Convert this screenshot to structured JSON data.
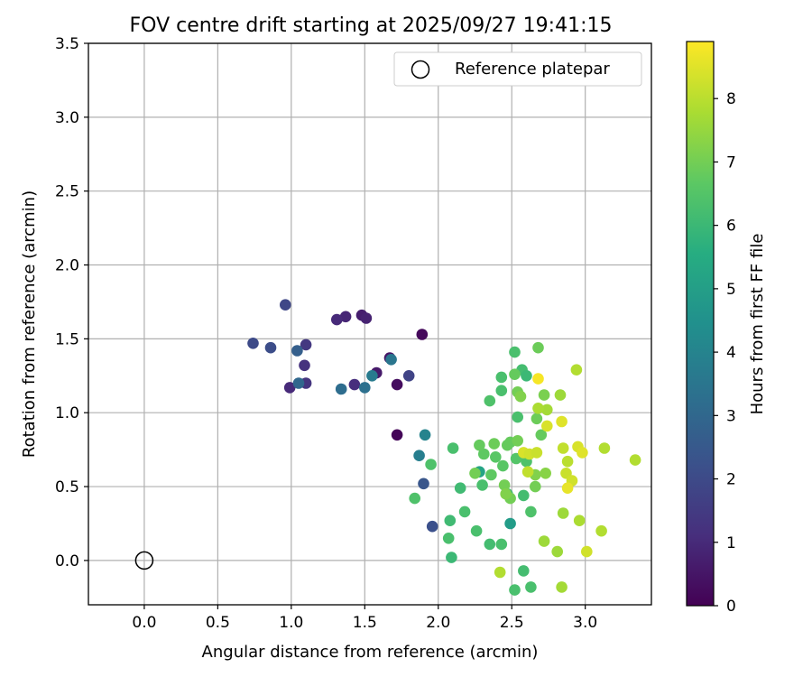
{
  "chart_data": {
    "type": "scatter",
    "title": "FOV centre drift starting at 2025/09/27 19:41:15",
    "xlabel": "Angular distance from reference (arcmin)",
    "ylabel": "Rotation from reference (arcmin)",
    "xlim": [
      -0.38,
      3.45
    ],
    "ylim": [
      -0.3,
      3.5
    ],
    "x_ticks": [
      "0.0",
      "0.5",
      "1.0",
      "1.5",
      "2.0",
      "2.5",
      "3.0"
    ],
    "y_ticks": [
      "0.0",
      "0.5",
      "1.0",
      "1.5",
      "2.0",
      "2.5",
      "3.0",
      "3.5"
    ],
    "grid": true,
    "legend": {
      "position": "top-right",
      "label": "Reference platepar"
    },
    "reference_point": {
      "x": 0.0,
      "y": 0.0
    },
    "colorbar": {
      "label": "Hours from first FF file",
      "range": [
        0,
        8.9
      ],
      "ticks": [
        "0",
        "1",
        "2",
        "3",
        "4",
        "5",
        "6",
        "7",
        "8"
      ],
      "colormap": "viridis"
    },
    "points": [
      [
        1.72,
        0.85,
        0.1
      ],
      [
        1.89,
        1.53,
        0.2
      ],
      [
        1.72,
        1.19,
        0.3
      ],
      [
        1.67,
        1.37,
        0.5
      ],
      [
        1.58,
        1.27,
        0.6
      ],
      [
        1.48,
        1.66,
        0.7
      ],
      [
        1.51,
        1.64,
        0.8
      ],
      [
        1.37,
        1.65,
        0.9
      ],
      [
        1.31,
        1.63,
        1.0
      ],
      [
        1.43,
        1.19,
        1.1
      ],
      [
        0.99,
        1.17,
        1.0
      ],
      [
        1.09,
        1.32,
        1.2
      ],
      [
        1.1,
        1.2,
        1.3
      ],
      [
        1.1,
        1.46,
        1.4
      ],
      [
        1.8,
        1.25,
        1.8
      ],
      [
        0.96,
        1.73,
        1.9
      ],
      [
        0.74,
        1.47,
        2.0
      ],
      [
        0.86,
        1.44,
        2.1
      ],
      [
        1.96,
        0.23,
        2.2
      ],
      [
        1.9,
        0.52,
        2.4
      ],
      [
        1.04,
        1.42,
        2.7
      ],
      [
        1.05,
        1.2,
        3.0
      ],
      [
        1.34,
        1.16,
        3.2
      ],
      [
        1.5,
        1.17,
        3.3
      ],
      [
        1.68,
        1.36,
        3.5
      ],
      [
        1.55,
        1.25,
        3.7
      ],
      [
        1.87,
        0.71,
        3.8
      ],
      [
        1.91,
        0.85,
        4.0
      ],
      [
        2.49,
        0.25,
        4.9
      ],
      [
        2.28,
        0.6,
        5.2
      ],
      [
        2.57,
        1.29,
        6.2
      ],
      [
        2.6,
        1.25,
        6.0
      ],
      [
        2.08,
        0.27,
        6.1
      ],
      [
        2.09,
        0.02,
        6.0
      ],
      [
        2.07,
        0.15,
        6.3
      ],
      [
        2.15,
        0.49,
        6.1
      ],
      [
        1.84,
        0.42,
        6.4
      ],
      [
        1.95,
        0.65,
        6.4
      ],
      [
        2.1,
        0.76,
        6.3
      ],
      [
        2.18,
        0.33,
        6.3
      ],
      [
        2.26,
        0.2,
        6.3
      ],
      [
        2.35,
        0.11,
        6.2
      ],
      [
        2.43,
        0.11,
        6.3
      ],
      [
        2.47,
        0.45,
        6.1
      ],
      [
        2.3,
        0.51,
        6.3
      ],
      [
        2.35,
        1.08,
        6.4
      ],
      [
        2.43,
        1.15,
        6.3
      ],
      [
        2.43,
        1.24,
        6.3
      ],
      [
        2.52,
        1.41,
        6.3
      ],
      [
        2.54,
        0.97,
        6.3
      ],
      [
        2.58,
        0.44,
        6.2
      ],
      [
        2.58,
        -0.07,
        6.2
      ],
      [
        2.52,
        -0.2,
        6.3
      ],
      [
        2.63,
        -0.18,
        6.3
      ],
      [
        2.63,
        0.33,
        6.4
      ],
      [
        2.6,
        0.67,
        6.4
      ],
      [
        2.53,
        0.69,
        6.5
      ],
      [
        2.44,
        0.64,
        6.6
      ],
      [
        2.39,
        0.7,
        6.6
      ],
      [
        2.36,
        0.58,
        6.7
      ],
      [
        2.31,
        0.72,
        6.7
      ],
      [
        2.28,
        0.78,
        6.8
      ],
      [
        2.38,
        0.79,
        6.9
      ],
      [
        2.49,
        0.8,
        6.8
      ],
      [
        2.54,
        0.81,
        7.0
      ],
      [
        2.47,
        0.78,
        6.8
      ],
      [
        2.25,
        0.59,
        7.0
      ],
      [
        2.45,
        0.51,
        7.0
      ],
      [
        2.49,
        0.42,
        7.0
      ],
      [
        2.52,
        1.26,
        6.8
      ],
      [
        2.54,
        1.14,
        7.0
      ],
      [
        2.56,
        1.11,
        7.2
      ],
      [
        2.68,
        1.44,
        6.9
      ],
      [
        2.72,
        1.12,
        7.1
      ],
      [
        2.67,
        0.96,
        6.9
      ],
      [
        2.7,
        0.85,
        6.8
      ],
      [
        2.66,
        0.5,
        7.0
      ],
      [
        2.66,
        0.58,
        7.2
      ],
      [
        2.73,
        0.59,
        7.3
      ],
      [
        2.72,
        0.13,
        7.6
      ],
      [
        2.81,
        0.06,
        7.6
      ],
      [
        2.85,
        0.32,
        7.6
      ],
      [
        2.83,
        1.12,
        7.6
      ],
      [
        2.74,
        1.02,
        7.7
      ],
      [
        2.68,
        1.03,
        7.8
      ],
      [
        2.58,
        0.73,
        8.4
      ],
      [
        2.62,
        0.72,
        8.3
      ],
      [
        2.61,
        0.6,
        8.1
      ],
      [
        2.67,
        0.73,
        8.2
      ],
      [
        2.85,
        0.76,
        8.1
      ],
      [
        2.88,
        0.67,
        8.0
      ],
      [
        2.87,
        0.59,
        8.2
      ],
      [
        2.91,
        0.54,
        8.3
      ],
      [
        2.94,
        1.29,
        7.9
      ],
      [
        2.84,
        0.94,
        8.5
      ],
      [
        2.74,
        0.91,
        8.4
      ],
      [
        2.95,
        0.77,
        8.4
      ],
      [
        2.98,
        0.73,
        8.5
      ],
      [
        3.13,
        0.76,
        7.9
      ],
      [
        3.34,
        0.68,
        7.9
      ],
      [
        2.88,
        0.49,
        8.6
      ],
      [
        2.96,
        0.27,
        7.8
      ],
      [
        3.01,
        0.06,
        8.3
      ],
      [
        3.11,
        0.2,
        7.9
      ],
      [
        2.84,
        -0.18,
        7.7
      ],
      [
        2.42,
        -0.08,
        7.9
      ],
      [
        2.68,
        1.23,
        8.8
      ],
      [
        2.46,
        0.45,
        7.2
      ]
    ]
  }
}
